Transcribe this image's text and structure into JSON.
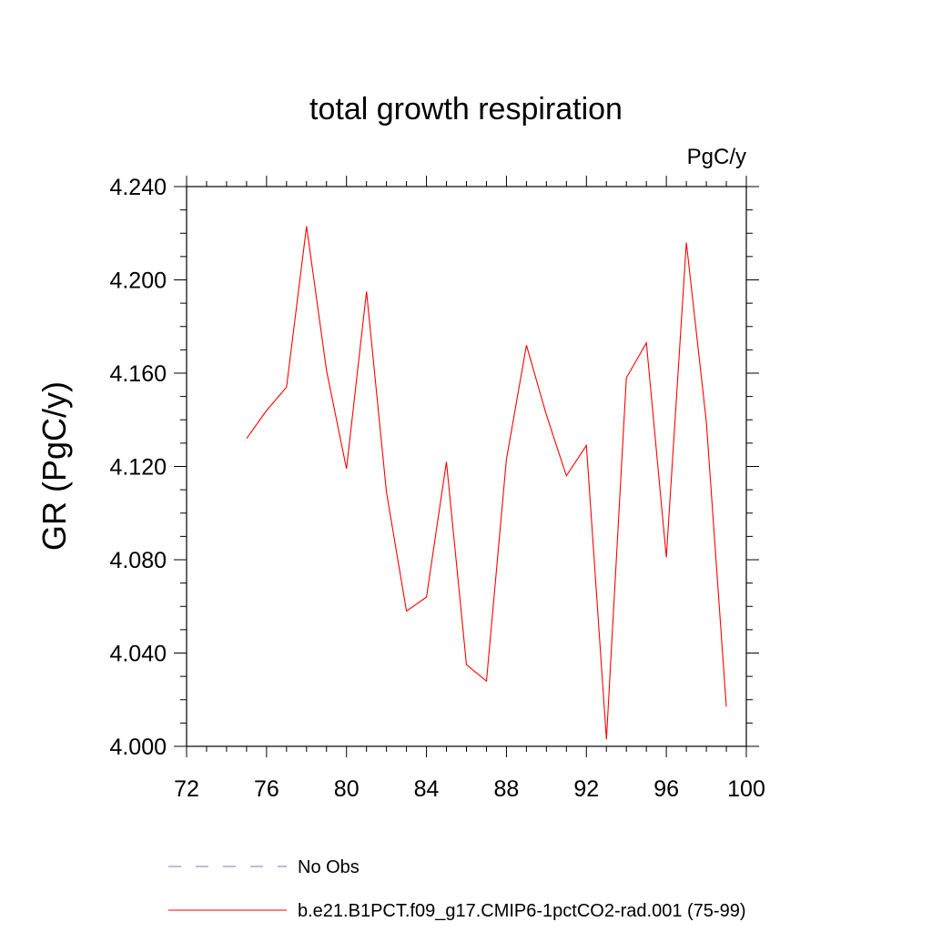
{
  "chart_data": {
    "type": "line",
    "title": "total growth respiration",
    "units": "PgC/y",
    "ylabel": "GR  (PgC/y)",
    "xlabel": "",
    "xlim": [
      72,
      100
    ],
    "ylim": [
      4.0,
      4.24
    ],
    "xticks": [
      "72",
      "76",
      "80",
      "84",
      "88",
      "92",
      "96",
      "100"
    ],
    "yticks": [
      "4.000",
      "4.040",
      "4.080",
      "4.120",
      "4.160",
      "4.200",
      "4.240"
    ],
    "series": [
      {
        "name": "b.e21.B1PCT.f09_g17.CMIP6-1pctCO2-rad.001 (75-99)",
        "color": "#ff0000",
        "style": "solid",
        "x": [
          75,
          76,
          77,
          78,
          79,
          80,
          81,
          82,
          83,
          84,
          85,
          86,
          87,
          88,
          89,
          90,
          91,
          92,
          93,
          94,
          95,
          96,
          97,
          98,
          99
        ],
        "y": [
          4.132,
          4.144,
          4.154,
          4.223,
          4.161,
          4.119,
          4.195,
          4.109,
          4.058,
          4.064,
          4.122,
          4.035,
          4.028,
          4.123,
          4.172,
          4.142,
          4.116,
          4.129,
          4.003,
          4.158,
          4.173,
          4.081,
          4.216,
          4.139,
          4.017
        ]
      }
    ],
    "legend": [
      {
        "label": "No Obs",
        "color": "#7a7ac8",
        "style": "dashed"
      },
      {
        "label": "b.e21.B1PCT.f09_g17.CMIP6-1pctCO2-rad.001 (75-99)",
        "color": "#ff0000",
        "style": "solid"
      }
    ],
    "legend_position": "bottom",
    "grid": false
  }
}
